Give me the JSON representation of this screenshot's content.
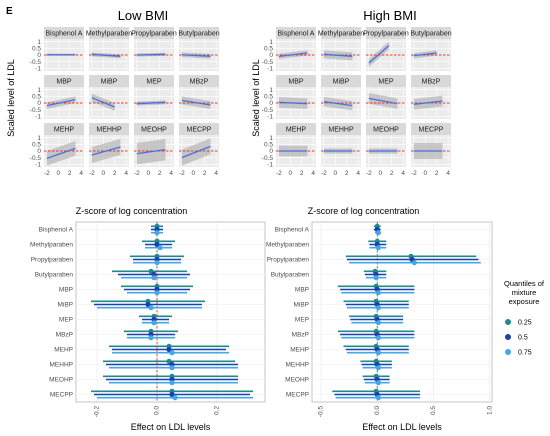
{
  "panel_label": "E",
  "groups": [
    {
      "title": "Low BMI"
    },
    {
      "title": "High BMI"
    }
  ],
  "facet": {
    "y_axis_title": "Scaled level of LDL",
    "x_axis_title": "Z-score of log concentration",
    "y_ticks": [
      "1",
      "0.5",
      "0",
      "-0.5",
      "-1"
    ],
    "x_ticks": [
      "-2",
      "0",
      "2",
      "4"
    ],
    "strips": [
      [
        "Bisphenol A",
        "Methylparaben",
        "Propylparaben",
        "Butylparaben"
      ],
      [
        "MBP",
        "MiBP",
        "MEP",
        "MBzP"
      ],
      [
        "MEHP",
        "MEHHP",
        "MEOHP",
        "MECPP"
      ]
    ]
  },
  "forest": {
    "x_axis_title": "Effect on LDL levels",
    "categories": [
      "Bisphenol A",
      "Methylparaben",
      "Propylparaben",
      "Butylparaben",
      "MBP",
      "MiBP",
      "MEP",
      "MBzP",
      "MEHP",
      "MEHHP",
      "MEOHP",
      "MECPP"
    ],
    "low_ticks": [
      "-0.2",
      "0.0",
      "0.2"
    ],
    "high_ticks": [
      "-0.5",
      "0.0",
      "0.5",
      "1.0"
    ]
  },
  "legend": {
    "title_lines": [
      "Quantiles of",
      "mixture",
      "exposure"
    ],
    "items": [
      {
        "label": "0.25",
        "color": "#1f8a8a"
      },
      {
        "label": "0.5",
        "color": "#1f3fae"
      },
      {
        "label": "0.75",
        "color": "#3fa8e8"
      }
    ]
  },
  "colors": {
    "line": "#4a6fe0",
    "ref_line": "#e8372c",
    "ribbon": "#b5b5b5",
    "panel_bg": "#ebebeb",
    "strip_bg": "#d9d9d9"
  },
  "chart_data": [
    {
      "type": "line",
      "group": "Low BMI",
      "xlabel": "Z-score of log concentration",
      "ylabel": "Scaled level of LDL",
      "xlim": [
        -2.5,
        4.5
      ],
      "ylim": [
        -1.2,
        1.2
      ],
      "series": [
        {
          "name": "Bisphenol A",
          "x": [
            -2,
            3
          ],
          "y": [
            0.02,
            0.02
          ],
          "band": 0.08
        },
        {
          "name": "Methylparaben",
          "x": [
            -2,
            3
          ],
          "y": [
            0.05,
            -0.1
          ],
          "band": 0.15
        },
        {
          "name": "Propylparaben",
          "x": [
            -2,
            3
          ],
          "y": [
            0.0,
            0.05
          ],
          "band": 0.12
        },
        {
          "name": "Butylparaben",
          "x": [
            -2,
            3
          ],
          "y": [
            0.02,
            -0.1
          ],
          "band": 0.18
        },
        {
          "name": "MBP",
          "x": [
            -2,
            3
          ],
          "y": [
            -0.2,
            0.25
          ],
          "band": 0.25
        },
        {
          "name": "MiBP",
          "x": [
            -2,
            2
          ],
          "y": [
            0.4,
            -0.3
          ],
          "band": 0.3
        },
        {
          "name": "MEP",
          "x": [
            -2,
            3
          ],
          "y": [
            -0.05,
            0.05
          ],
          "band": 0.15
        },
        {
          "name": "MBzP",
          "x": [
            -2,
            3
          ],
          "y": [
            0.2,
            -0.15
          ],
          "band": 0.3
        },
        {
          "name": "MEHP",
          "x": [
            -2,
            3
          ],
          "y": [
            -0.55,
            0.2
          ],
          "band": 0.55
        },
        {
          "name": "MEHHP",
          "x": [
            -2,
            3
          ],
          "y": [
            -0.3,
            0.3
          ],
          "band": 0.6
        },
        {
          "name": "MEOHP",
          "x": [
            -2,
            3
          ],
          "y": [
            -0.2,
            0.1
          ],
          "band": 0.8
        },
        {
          "name": "MECPP",
          "x": [
            -2,
            3
          ],
          "y": [
            -0.5,
            0.35
          ],
          "band": 0.6
        }
      ]
    },
    {
      "type": "line",
      "group": "High BMI",
      "xlabel": "Z-score of log concentration",
      "ylabel": "Scaled level of LDL",
      "xlim": [
        -2.5,
        4.5
      ],
      "ylim": [
        -1.2,
        1.2
      ],
      "series": [
        {
          "name": "Bisphenol A",
          "x": [
            -2,
            3
          ],
          "y": [
            -0.1,
            0.15
          ],
          "band": 0.2
        },
        {
          "name": "Methylparaben",
          "x": [
            -2,
            3
          ],
          "y": [
            0.05,
            -0.1
          ],
          "band": 0.3
        },
        {
          "name": "Propylparaben",
          "x": [
            -2,
            1.5
          ],
          "y": [
            -0.6,
            0.7
          ],
          "band": 0.3
        },
        {
          "name": "Butylparaben",
          "x": [
            -2,
            2
          ],
          "y": [
            -0.05,
            0.15
          ],
          "band": 0.2
        },
        {
          "name": "MBP",
          "x": [
            -2,
            3
          ],
          "y": [
            0.05,
            -0.05
          ],
          "band": 0.4
        },
        {
          "name": "MiBP",
          "x": [
            -2,
            3
          ],
          "y": [
            0.1,
            -0.2
          ],
          "band": 0.35
        },
        {
          "name": "MEP",
          "x": [
            -2,
            3
          ],
          "y": [
            0.35,
            -0.05
          ],
          "band": 0.4
        },
        {
          "name": "MBzP",
          "x": [
            -2,
            3
          ],
          "y": [
            -0.1,
            0.15
          ],
          "band": 0.4
        },
        {
          "name": "MEHP",
          "x": [
            -2,
            3
          ],
          "y": [
            0.0,
            0.0
          ],
          "band": 0.4
        },
        {
          "name": "MEHHP",
          "x": [
            -2,
            3
          ],
          "y": [
            0.0,
            0.0
          ],
          "band": 0.2
        },
        {
          "name": "MEOHP",
          "x": [
            -2,
            3
          ],
          "y": [
            0.0,
            0.0
          ],
          "band": 0.2
        },
        {
          "name": "MECPP",
          "x": [
            -2,
            3
          ],
          "y": [
            0.0,
            0.0
          ],
          "band": 0.6
        }
      ]
    },
    {
      "type": "forest",
      "group": "Low BMI",
      "xlabel": "Effect on LDL levels",
      "xlim": [
        -0.27,
        0.36
      ],
      "series": [
        {
          "name": "0.25",
          "values": [
            {
              "est": 0.0,
              "lo": -0.02,
              "hi": 0.02
            },
            {
              "est": 0.0,
              "lo": -0.05,
              "hi": 0.06
            },
            {
              "est": 0.0,
              "lo": -0.09,
              "hi": 0.09
            },
            {
              "est": -0.02,
              "lo": -0.15,
              "hi": 0.1
            },
            {
              "est": 0.0,
              "lo": -0.12,
              "hi": 0.12
            },
            {
              "est": -0.03,
              "lo": -0.22,
              "hi": 0.16
            },
            {
              "est": -0.01,
              "lo": -0.06,
              "hi": 0.05
            },
            {
              "est": -0.02,
              "lo": -0.11,
              "hi": 0.07
            },
            {
              "est": 0.04,
              "lo": -0.16,
              "hi": 0.24
            },
            {
              "est": 0.04,
              "lo": -0.18,
              "hi": 0.26
            },
            {
              "est": 0.05,
              "lo": -0.18,
              "hi": 0.27
            },
            {
              "est": 0.05,
              "lo": -0.22,
              "hi": 0.32
            }
          ]
        },
        {
          "name": "0.5",
          "values": [
            {
              "est": 0.0,
              "lo": -0.02,
              "hi": 0.02
            },
            {
              "est": 0.0,
              "lo": -0.04,
              "hi": 0.05
            },
            {
              "est": 0.0,
              "lo": -0.08,
              "hi": 0.08
            },
            {
              "est": -0.01,
              "lo": -0.13,
              "hi": 0.11
            },
            {
              "est": 0.0,
              "lo": -0.11,
              "hi": 0.11
            },
            {
              "est": -0.03,
              "lo": -0.21,
              "hi": 0.15
            },
            {
              "est": -0.01,
              "lo": -0.05,
              "hi": 0.04
            },
            {
              "est": -0.02,
              "lo": -0.1,
              "hi": 0.06
            },
            {
              "est": 0.04,
              "lo": -0.15,
              "hi": 0.23
            },
            {
              "est": 0.05,
              "lo": -0.17,
              "hi": 0.27
            },
            {
              "est": 0.05,
              "lo": -0.17,
              "hi": 0.27
            },
            {
              "est": 0.05,
              "lo": -0.21,
              "hi": 0.31
            }
          ]
        },
        {
          "name": "0.75",
          "values": [
            {
              "est": 0.0,
              "lo": -0.02,
              "hi": 0.02
            },
            {
              "est": 0.01,
              "lo": -0.04,
              "hi": 0.05
            },
            {
              "est": 0.0,
              "lo": -0.08,
              "hi": 0.08
            },
            {
              "est": -0.01,
              "lo": -0.12,
              "hi": 0.1
            },
            {
              "est": 0.0,
              "lo": -0.1,
              "hi": 0.1
            },
            {
              "est": -0.02,
              "lo": -0.2,
              "hi": 0.15
            },
            {
              "est": -0.01,
              "lo": -0.05,
              "hi": 0.04
            },
            {
              "est": -0.02,
              "lo": -0.1,
              "hi": 0.06
            },
            {
              "est": 0.05,
              "lo": -0.15,
              "hi": 0.24
            },
            {
              "est": 0.05,
              "lo": -0.16,
              "hi": 0.27
            },
            {
              "est": 0.05,
              "lo": -0.16,
              "hi": 0.27
            },
            {
              "est": 0.06,
              "lo": -0.2,
              "hi": 0.32
            }
          ]
        }
      ]
    },
    {
      "type": "forest",
      "group": "High BMI",
      "xlabel": "Effect on LDL levels",
      "xlim": [
        -0.58,
        1.02
      ],
      "series": [
        {
          "name": "0.25",
          "values": [
            {
              "est": 0.0,
              "lo": -0.03,
              "hi": 0.03
            },
            {
              "est": 0.0,
              "lo": -0.08,
              "hi": 0.08
            },
            {
              "est": 0.3,
              "lo": -0.28,
              "hi": 0.88
            },
            {
              "est": -0.02,
              "lo": -0.12,
              "hi": 0.08
            },
            {
              "est": -0.01,
              "lo": -0.35,
              "hi": 0.33
            },
            {
              "est": -0.01,
              "lo": -0.3,
              "hi": 0.28
            },
            {
              "est": -0.01,
              "lo": -0.25,
              "hi": 0.23
            },
            {
              "est": -0.01,
              "lo": -0.35,
              "hi": 0.33
            },
            {
              "est": -0.01,
              "lo": -0.3,
              "hi": 0.28
            },
            {
              "est": -0.01,
              "lo": -0.15,
              "hi": 0.13
            },
            {
              "est": -0.01,
              "lo": -0.13,
              "hi": 0.11
            },
            {
              "est": -0.01,
              "lo": -0.4,
              "hi": 0.38
            }
          ]
        },
        {
          "name": "0.5",
          "values": [
            {
              "est": 0.0,
              "lo": -0.03,
              "hi": 0.03
            },
            {
              "est": 0.0,
              "lo": -0.07,
              "hi": 0.08
            },
            {
              "est": 0.31,
              "lo": -0.27,
              "hi": 0.9
            },
            {
              "est": -0.01,
              "lo": -0.11,
              "hi": 0.08
            },
            {
              "est": 0.0,
              "lo": -0.33,
              "hi": 0.33
            },
            {
              "est": 0.0,
              "lo": -0.28,
              "hi": 0.28
            },
            {
              "est": 0.0,
              "lo": -0.24,
              "hi": 0.23
            },
            {
              "est": 0.0,
              "lo": -0.33,
              "hi": 0.33
            },
            {
              "est": 0.0,
              "lo": -0.28,
              "hi": 0.28
            },
            {
              "est": 0.0,
              "lo": -0.14,
              "hi": 0.13
            },
            {
              "est": 0.0,
              "lo": -0.12,
              "hi": 0.11
            },
            {
              "est": 0.0,
              "lo": -0.38,
              "hi": 0.38
            }
          ]
        },
        {
          "name": "0.75",
          "values": [
            {
              "est": 0.01,
              "lo": -0.02,
              "hi": 0.03
            },
            {
              "est": 0.01,
              "lo": -0.07,
              "hi": 0.08
            },
            {
              "est": 0.33,
              "lo": -0.25,
              "hi": 0.92
            },
            {
              "est": -0.01,
              "lo": -0.1,
              "hi": 0.08
            },
            {
              "est": 0.01,
              "lo": -0.32,
              "hi": 0.33
            },
            {
              "est": 0.01,
              "lo": -0.27,
              "hi": 0.28
            },
            {
              "est": 0.01,
              "lo": -0.23,
              "hi": 0.23
            },
            {
              "est": 0.01,
              "lo": -0.32,
              "hi": 0.33
            },
            {
              "est": 0.01,
              "lo": -0.27,
              "hi": 0.28
            },
            {
              "est": 0.01,
              "lo": -0.13,
              "hi": 0.13
            },
            {
              "est": 0.01,
              "lo": -0.11,
              "hi": 0.11
            },
            {
              "est": 0.01,
              "lo": -0.37,
              "hi": 0.38
            }
          ]
        }
      ]
    }
  ]
}
